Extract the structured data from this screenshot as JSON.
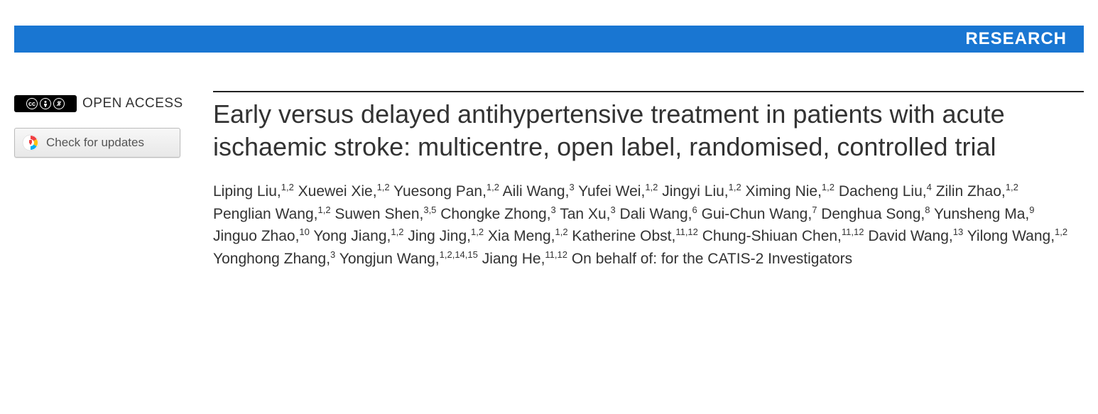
{
  "header": {
    "section_label": "RESEARCH",
    "bar_color": "#1976d2",
    "text_color": "#ffffff"
  },
  "sidebar": {
    "open_access_label": "OPEN ACCESS",
    "cc_badge_bg": "#000000",
    "check_updates_label": "Check for updates",
    "crossmark_colors": {
      "ring_red": "#ef3e42",
      "ring_yellow": "#ffc20e",
      "ring_blue": "#00aeef"
    }
  },
  "article": {
    "title": "Early versus delayed antihypertensive treatment in patients with acute ischaemic stroke: multicentre, open label, randomised, controlled trial",
    "title_color": "#333333",
    "title_fontsize": 36,
    "authors": [
      {
        "name": "Liping Liu",
        "affil": "1,2"
      },
      {
        "name": "Xuewei Xie",
        "affil": "1,2"
      },
      {
        "name": "Yuesong Pan",
        "affil": "1,2"
      },
      {
        "name": "Aili Wang",
        "affil": "3"
      },
      {
        "name": "Yufei Wei",
        "affil": "1,2"
      },
      {
        "name": "Jingyi Liu",
        "affil": "1,2"
      },
      {
        "name": "Ximing Nie",
        "affil": "1,2"
      },
      {
        "name": "Dacheng Liu",
        "affil": "4"
      },
      {
        "name": "Zilin Zhao",
        "affil": "1,2"
      },
      {
        "name": "Penglian Wang",
        "affil": "1,2"
      },
      {
        "name": "Suwen Shen",
        "affil": "3,5"
      },
      {
        "name": "Chongke Zhong",
        "affil": "3"
      },
      {
        "name": "Tan Xu",
        "affil": "3"
      },
      {
        "name": "Dali Wang",
        "affil": "6"
      },
      {
        "name": "Gui-Chun Wang",
        "affil": "7"
      },
      {
        "name": "Denghua Song",
        "affil": "8"
      },
      {
        "name": "Yunsheng Ma",
        "affil": "9"
      },
      {
        "name": "Jinguo Zhao",
        "affil": "10"
      },
      {
        "name": "Yong Jiang",
        "affil": "1,2"
      },
      {
        "name": "Jing Jing",
        "affil": "1,2"
      },
      {
        "name": "Xia Meng",
        "affil": "1,2"
      },
      {
        "name": "Katherine Obst",
        "affil": "11,12"
      },
      {
        "name": "Chung-Shiuan Chen",
        "affil": "11,12"
      },
      {
        "name": "David Wang",
        "affil": "13"
      },
      {
        "name": "Yilong Wang",
        "affil": "1,2"
      },
      {
        "name": "Yonghong Zhang",
        "affil": "3"
      },
      {
        "name": "Yongjun Wang",
        "affil": "1,2,14,15"
      },
      {
        "name": "Jiang He",
        "affil": "11,12"
      }
    ],
    "authors_suffix": "On behalf of: for the CATIS-2 Investigators",
    "author_fontsize": 21,
    "author_color": "#333333"
  }
}
